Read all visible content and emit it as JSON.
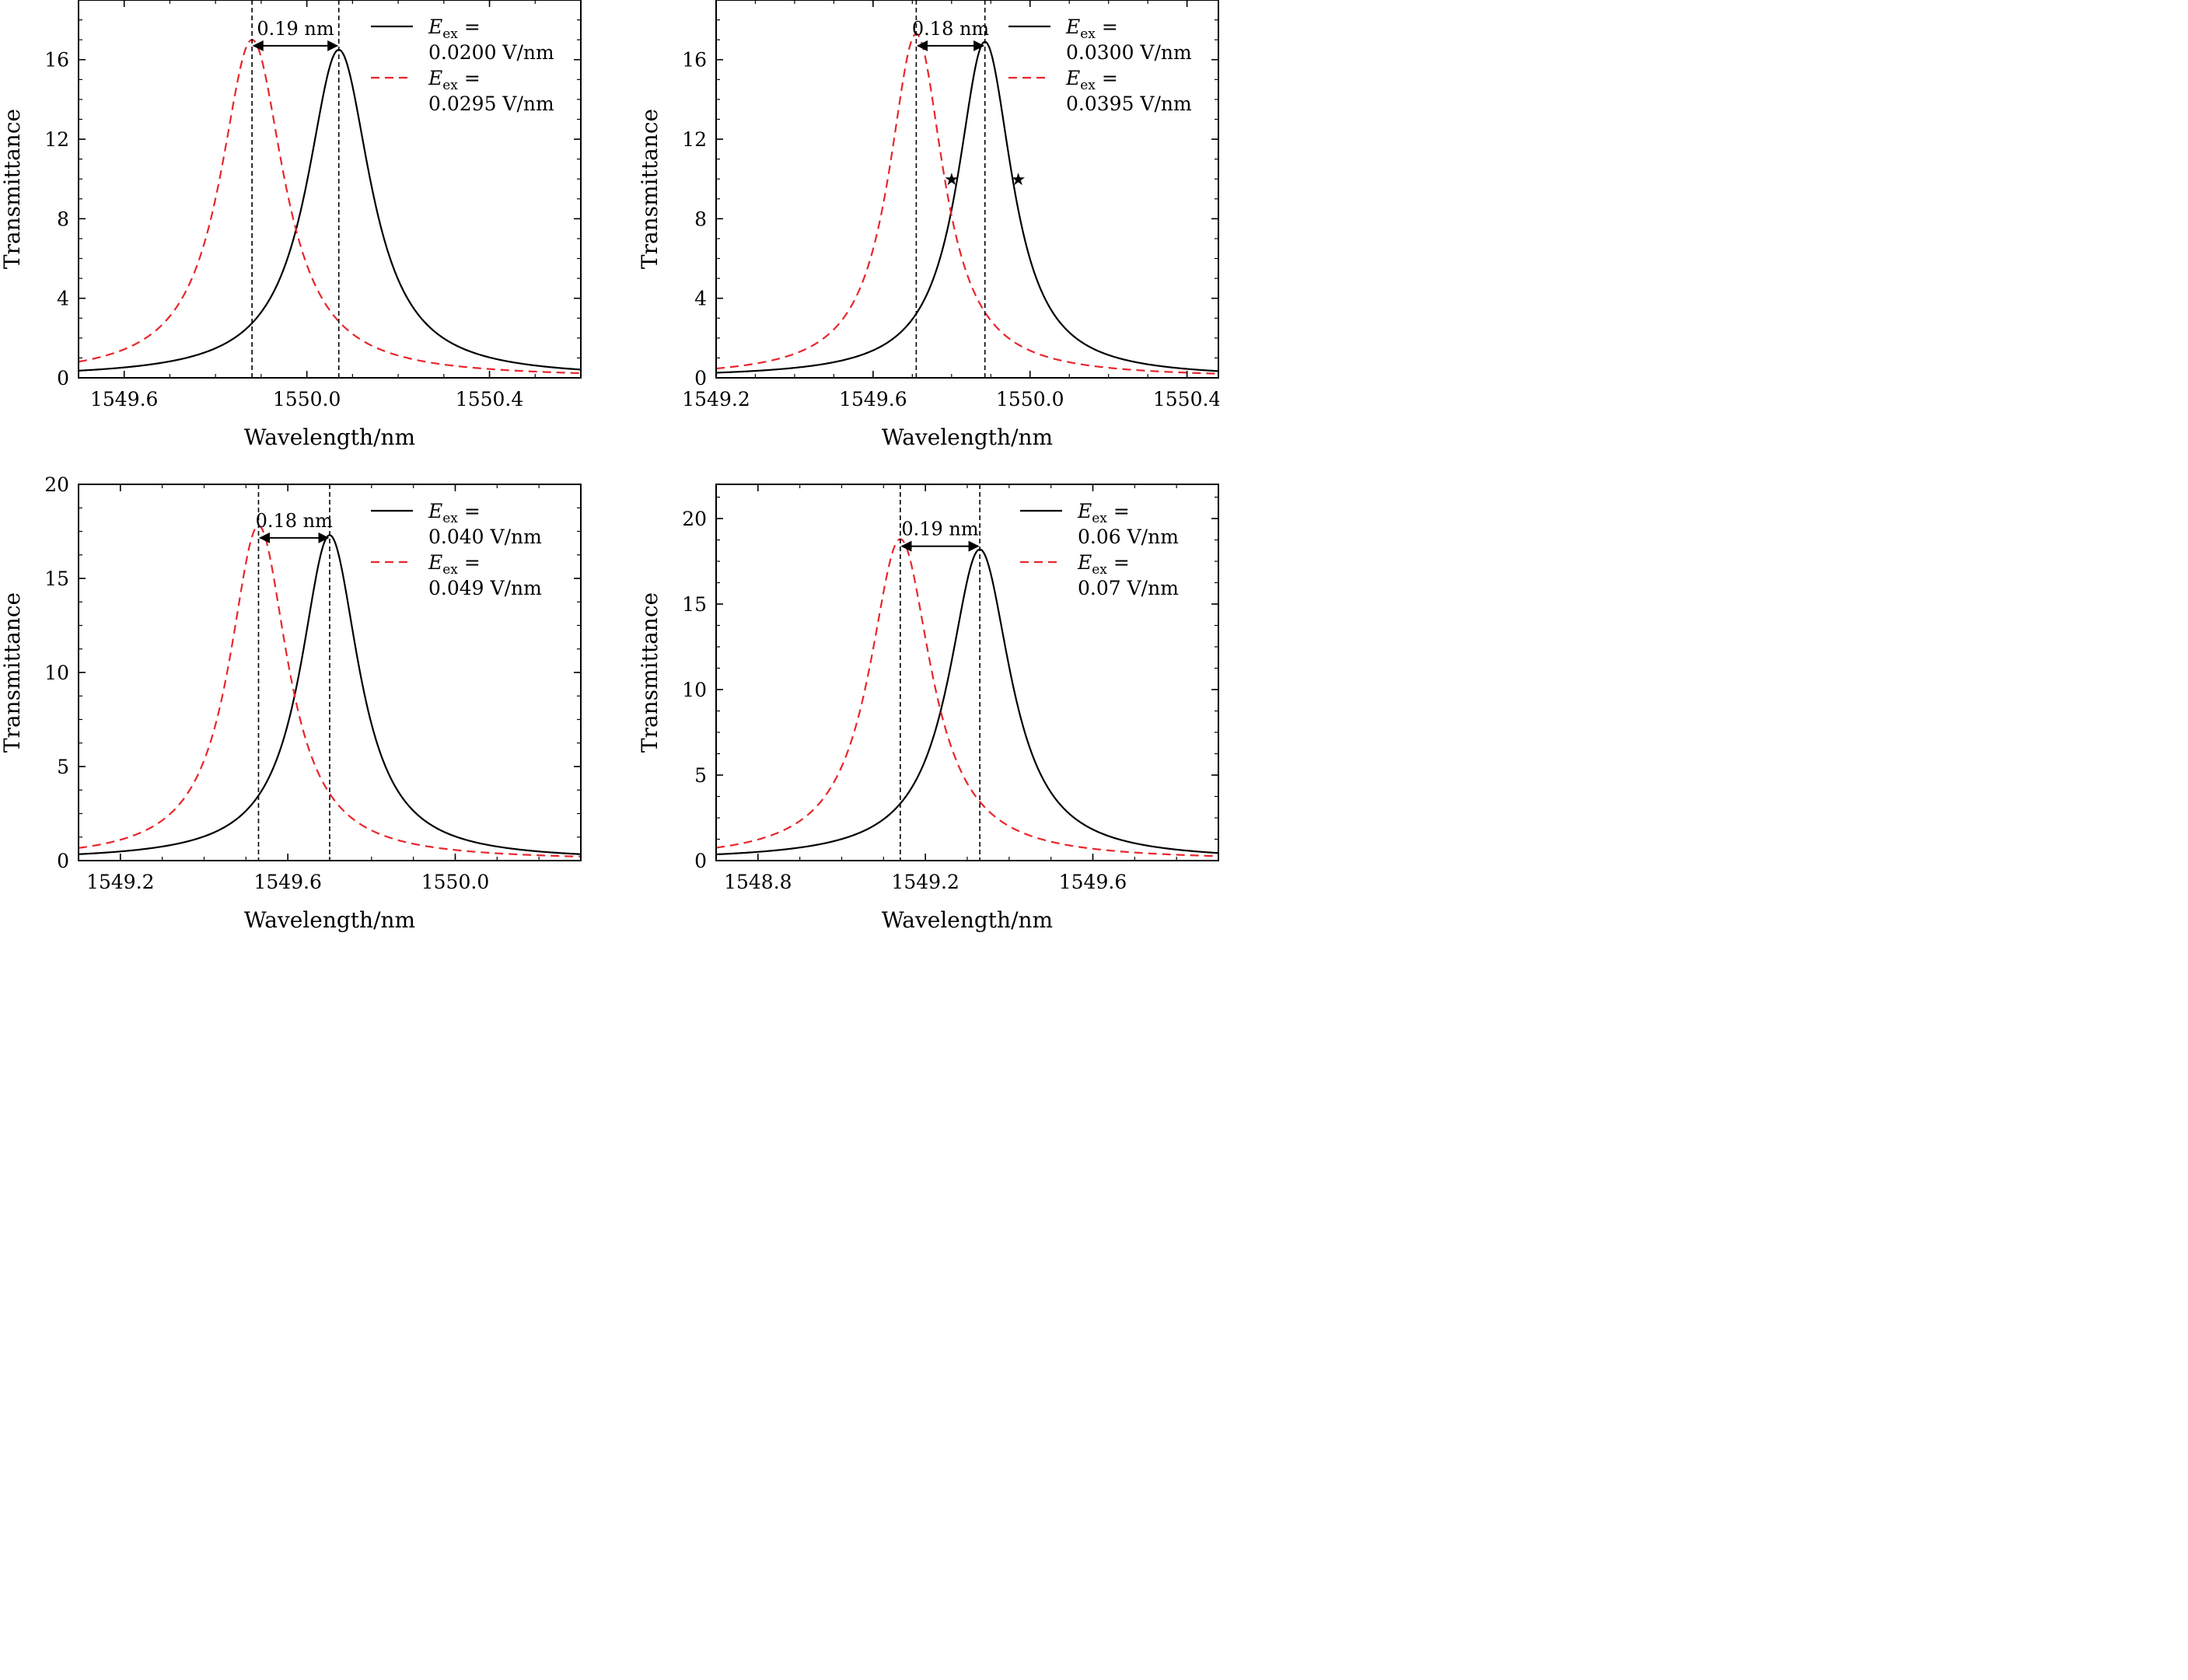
{
  "figure": {
    "panels": [
      {
        "annotation": "0.19 nm",
        "legend": [
          {
            "label": "E",
            "subscript": "ex",
            "eq": " =",
            "value": "0.0200 V/nm"
          },
          {
            "label": "E",
            "subscript": "ex",
            "eq": " =",
            "value": "0.0295 V/nm"
          }
        ]
      },
      {
        "annotation": "0.18 nm",
        "legend": [
          {
            "label": "E",
            "subscript": "ex",
            "eq": " =",
            "value": "0.0300 V/nm"
          },
          {
            "label": "E",
            "subscript": "ex",
            "eq": " =",
            "value": "0.0395 V/nm"
          }
        ]
      },
      {
        "annotation": "0.18 nm",
        "legend": [
          {
            "label": "E",
            "subscript": "ex",
            "eq": " =",
            "value": "0.040 V/nm"
          },
          {
            "label": "E",
            "subscript": "ex",
            "eq": " =",
            "value": "0.049 V/nm"
          }
        ]
      },
      {
        "annotation": "0.19 nm",
        "legend": [
          {
            "label": "E",
            "subscript": "ex",
            "eq": " =",
            "value": "0.06 V/nm"
          },
          {
            "label": "E",
            "subscript": "ex",
            "eq": " =",
            "value": "0.07 V/nm"
          }
        ]
      }
    ],
    "colors": {
      "solid": "#000000",
      "dashed": "#e8262b",
      "marker_lines": "#000000"
    }
  },
  "chart_data": [
    {
      "type": "line",
      "xlabel": "Wavelength/nm",
      "ylabel": "Transmittance",
      "xlim": [
        1549.5,
        1550.6
      ],
      "ylim": [
        0,
        19
      ],
      "xticks": [
        1549.6,
        1550.0,
        1550.4
      ],
      "xtick_labels": [
        "1549.6",
        "1550.0",
        "1550.4"
      ],
      "yticks": [
        0,
        4,
        8,
        12,
        16
      ],
      "ytick_labels": [
        "0",
        "4",
        "8",
        "12",
        "16"
      ],
      "legend_position": "top-right",
      "grid": false,
      "series": [
        {
          "name": "E_ex = 0.0200 V/nm",
          "style": "solid",
          "peak_x": 1550.07,
          "peak_y": 16.5,
          "hwhm": 0.085
        },
        {
          "name": "E_ex = 0.0295 V/nm",
          "style": "dashed",
          "peak_x": 1549.88,
          "peak_y": 17.0,
          "hwhm": 0.085
        }
      ],
      "vlines": [
        1549.88,
        1550.07
      ],
      "annotation": {
        "text": "0.19 nm",
        "from": 1549.88,
        "to": 1550.07,
        "y": 17.4
      }
    },
    {
      "type": "line",
      "xlabel": "Wavelength/nm",
      "ylabel": "Transmittance",
      "xlim": [
        1549.2,
        1550.48
      ],
      "ylim": [
        0,
        19
      ],
      "xticks": [
        1549.2,
        1549.6,
        1550.0,
        1550.4
      ],
      "xtick_labels": [
        "1549.2",
        "1549.6",
        "1550.0",
        "1550.4"
      ],
      "yticks": [
        0,
        4,
        8,
        12,
        16
      ],
      "ytick_labels": [
        "0",
        "4",
        "8",
        "12",
        "16"
      ],
      "legend_position": "top-right",
      "grid": false,
      "series": [
        {
          "name": "E_ex = 0.0300 V/nm",
          "style": "solid",
          "peak_x": 1549.885,
          "peak_y": 16.9,
          "hwhm": 0.085
        },
        {
          "name": "E_ex = 0.0395 V/nm",
          "style": "dashed",
          "peak_x": 1549.71,
          "peak_y": 17.3,
          "hwhm": 0.085
        }
      ],
      "vlines": [
        1549.71,
        1549.885
      ],
      "markers": [
        {
          "x": 1549.8,
          "y": 10.0
        },
        {
          "x": 1549.97,
          "y": 10.0
        }
      ],
      "annotation": {
        "text": "0.18 nm",
        "from": 1549.71,
        "to": 1549.885,
        "y": 17.4
      }
    },
    {
      "type": "line",
      "xlabel": "Wavelength/nm",
      "ylabel": "Transmittance",
      "xlim": [
        1549.1,
        1550.3
      ],
      "ylim": [
        0,
        20
      ],
      "xticks": [
        1549.2,
        1549.6,
        1550.0
      ],
      "xtick_labels": [
        "1549.2",
        "1549.6",
        "1550.0"
      ],
      "yticks": [
        0,
        5,
        10,
        15,
        20
      ],
      "ytick_labels": [
        "0",
        "5",
        "10",
        "15",
        "20"
      ],
      "legend_position": "top-right",
      "grid": false,
      "series": [
        {
          "name": "E_ex = 0.040 V/nm",
          "style": "solid",
          "peak_x": 1549.7,
          "peak_y": 17.3,
          "hwhm": 0.085
        },
        {
          "name": "E_ex = 0.049 V/nm",
          "style": "dashed",
          "peak_x": 1549.53,
          "peak_y": 17.8,
          "hwhm": 0.085
        }
      ],
      "vlines": [
        1549.53,
        1549.7
      ],
      "annotation": {
        "text": "0.18 nm",
        "from": 1549.53,
        "to": 1549.7,
        "y": 17.9
      }
    },
    {
      "type": "line",
      "xlabel": "Wavelength/nm",
      "ylabel": "Transmittance",
      "xlim": [
        1548.7,
        1549.9
      ],
      "ylim": [
        0,
        22
      ],
      "xticks": [
        1548.8,
        1549.2,
        1549.6
      ],
      "xtick_labels": [
        "1548.8",
        "1549.2",
        "1549.6"
      ],
      "yticks": [
        0,
        5,
        10,
        15,
        20
      ],
      "ytick_labels": [
        "0",
        "5",
        "10",
        "15",
        "20"
      ],
      "legend_position": "top-right",
      "grid": false,
      "series": [
        {
          "name": "E_ex = 0.06 V/nm",
          "style": "solid",
          "peak_x": 1549.33,
          "peak_y": 18.2,
          "hwhm": 0.09
        },
        {
          "name": "E_ex = 0.07 V/nm",
          "style": "dashed",
          "peak_x": 1549.14,
          "peak_y": 18.8,
          "hwhm": 0.09
        }
      ],
      "vlines": [
        1549.14,
        1549.33
      ],
      "annotation": {
        "text": "0.19 nm",
        "from": 1549.14,
        "to": 1549.33,
        "y": 19.2
      }
    }
  ]
}
